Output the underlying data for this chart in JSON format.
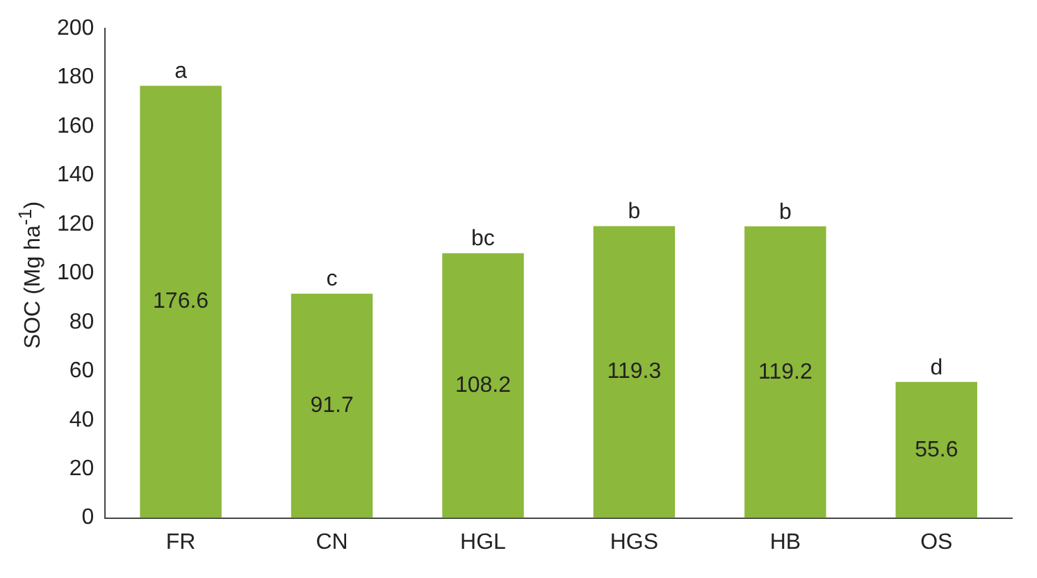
{
  "chart_data": {
    "type": "bar",
    "ylabel": "SOC (Mg ha$^{-1}$)",
    "categories": [
      "FR",
      "CN",
      "HGL",
      "HGS",
      "HB",
      "OS"
    ],
    "values": [
      176.6,
      91.7,
      108.2,
      119.3,
      119.2,
      55.6
    ],
    "color": "#8cb83c",
    "ylim": [
      0,
      200
    ],
    "yticks": [
      0,
      20,
      40,
      60,
      80,
      100,
      120,
      140,
      160,
      180,
      200
    ],
    "grid": false,
    "legend": false,
    "data_labels": true,
    "annotations": [
      {
        "text": "a",
        "x": "FR",
        "y": 176.6
      },
      {
        "text": "c",
        "x": "CN",
        "y": 91.7
      },
      {
        "text": "bc",
        "x": "HGL",
        "y": 108.2
      },
      {
        "text": "b",
        "x": "HGS",
        "y": 119.3
      },
      {
        "text": "b",
        "x": "HB",
        "y": 119.2
      },
      {
        "text": "d",
        "x": "OS",
        "y": 55.6
      }
    ]
  }
}
